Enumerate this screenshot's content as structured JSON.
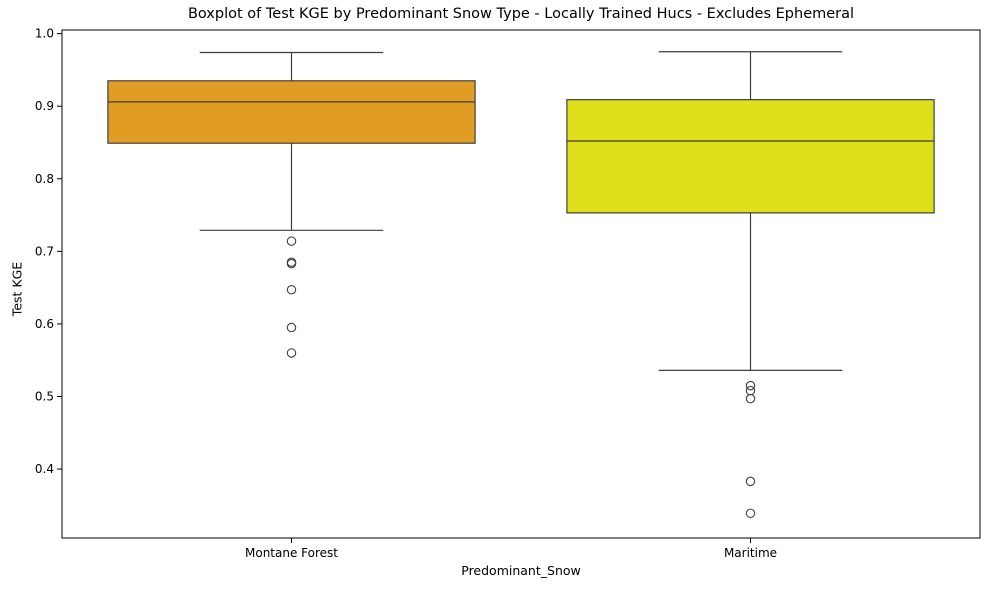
{
  "chart_data": {
    "type": "box",
    "title": "Boxplot of Test KGE by Predominant Snow Type - Locally Trained Hucs - Excludes Ephemeral",
    "xlabel": "Predominant_Snow",
    "ylabel": "Test KGE",
    "ylim": [
      0.305,
      1.005
    ],
    "yticks": [
      "0.4",
      "0.5",
      "0.6",
      "0.7",
      "0.8",
      "0.9",
      "1.0"
    ],
    "grid": false,
    "categories": [
      "Montane Forest",
      "Maritime"
    ],
    "boxes": [
      {
        "name": "Montane Forest",
        "color": "#E19C24",
        "whisker_low": 0.729,
        "q1": 0.849,
        "median": 0.906,
        "q3": 0.935,
        "whisker_high": 0.974,
        "outliers": [
          0.714,
          0.685,
          0.683,
          0.647,
          0.595,
          0.56
        ]
      },
      {
        "name": "Maritime",
        "color": "#DFDF1B",
        "whisker_low": 0.536,
        "q1": 0.753,
        "median": 0.852,
        "q3": 0.909,
        "whisker_high": 0.975,
        "outliers": [
          0.515,
          0.508,
          0.497,
          0.383,
          0.339
        ]
      }
    ]
  }
}
